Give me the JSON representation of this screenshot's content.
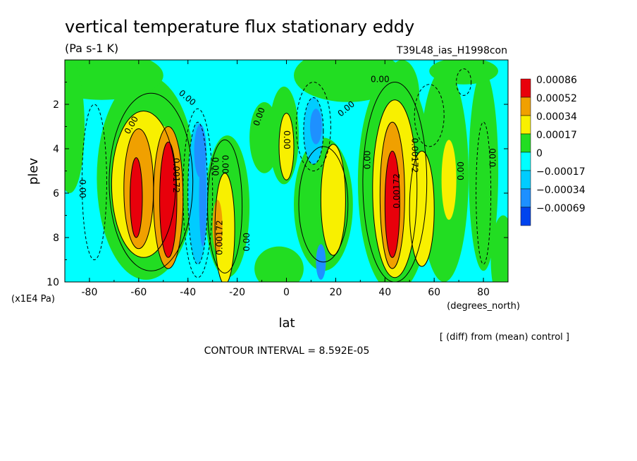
{
  "chart_data": {
    "type": "heatmap",
    "title": "vertical temperature flux stationary eddy",
    "units": "(Pa s-1 K)",
    "run_label": "T39L48_ias_H1998con",
    "xlabel": "lat",
    "x_units": "(degrees_north)",
    "ylabel": "plev",
    "y_units": "(x1E4 Pa)",
    "xlim": [
      -90,
      90
    ],
    "ylim": [
      0,
      10
    ],
    "y_inverted": true,
    "x_ticks": [
      "-80",
      "-60",
      "-40",
      "-20",
      "0",
      "20",
      "40",
      "60",
      "80"
    ],
    "x_tick_values": [
      -80,
      -60,
      -40,
      -20,
      0,
      20,
      40,
      60,
      80
    ],
    "y_ticks": [
      "2",
      "4",
      "6",
      "8",
      "10"
    ],
    "y_tick_values": [
      2,
      4,
      6,
      8,
      10
    ],
    "legend": {
      "placement": "right",
      "labels": [
        "0.00086",
        "0.00052",
        "0.00034",
        "0.00017",
        "0",
        "−0.00017",
        "−0.00034",
        "−0.00069"
      ],
      "colors": [
        "#e8000b",
        "#f0a000",
        "#f8f000",
        "#22dd22",
        "#00ffff",
        "#00ccff",
        "#1e90ff",
        "#0044ee"
      ]
    },
    "background_color": "#00ffff",
    "contour_interval_text": "CONTOUR INTERVAL = 8.592E-05",
    "diff_note": "[ (diff) from (mean) control ]",
    "contour_labels": [
      {
        "text": "0.00",
        "lat": -62,
        "plev": 3.0,
        "rot": -60
      },
      {
        "text": "0.00",
        "lat": -41,
        "plev": 1.8,
        "rot": 40
      },
      {
        "text": "0.00",
        "lat": -10,
        "plev": 2.6,
        "rot": -70
      },
      {
        "text": "0.00",
        "lat": -1,
        "plev": 3.6,
        "rot": 90
      },
      {
        "text": "0.00",
        "lat": 25,
        "plev": 2.3,
        "rot": -40
      },
      {
        "text": "0.00",
        "lat": 38,
        "plev": 1.0,
        "rot": 0
      },
      {
        "text": "0.00",
        "lat": 34,
        "plev": 4.5,
        "rot": -90
      },
      {
        "text": "0.00",
        "lat": 72,
        "plev": 5.0,
        "rot": -90
      },
      {
        "text": "0.00",
        "lat": 85,
        "plev": 4.4,
        "rot": -90
      },
      {
        "text": "0.00",
        "lat": -84,
        "plev": 5.8,
        "rot": 90
      },
      {
        "text": "0.00",
        "lat": -30,
        "plev": 4.8,
        "rot": 90
      },
      {
        "text": "0.00",
        "lat": -15,
        "plev": 8.2,
        "rot": -90
      },
      {
        "text": "0.00",
        "lat": -26,
        "plev": 4.7,
        "rot": 90
      },
      {
        "text": "0.00172",
        "lat": -26,
        "plev": 8.0,
        "rot": -90
      },
      {
        "text": "0.00172",
        "lat": -46,
        "plev": 5.2,
        "rot": 90
      },
      {
        "text": "0.00172",
        "lat": 46,
        "plev": 5.9,
        "rot": -90
      },
      {
        "text": "0.00172",
        "lat": 51,
        "plev": 4.3,
        "rot": 90
      }
    ]
  }
}
